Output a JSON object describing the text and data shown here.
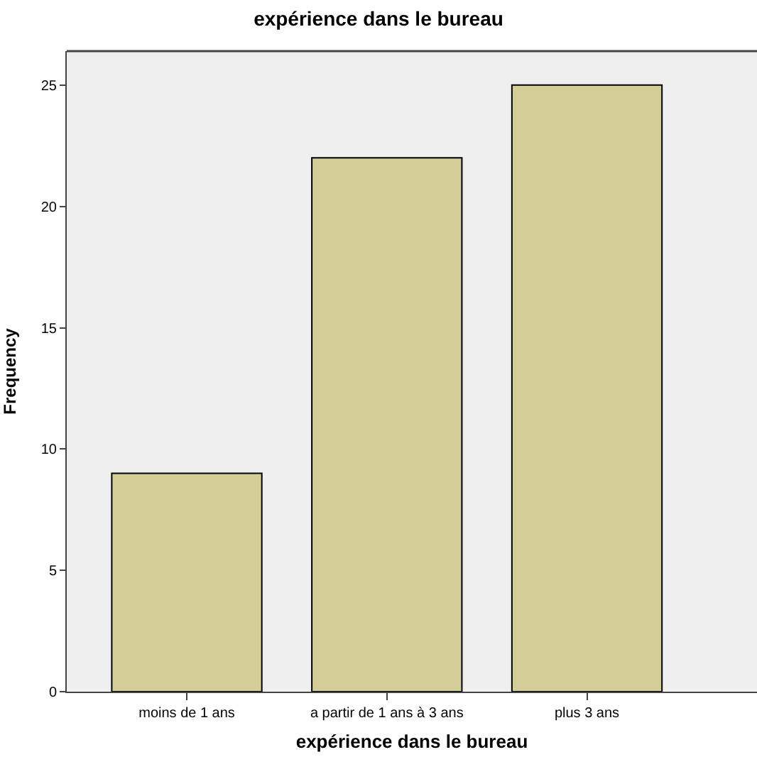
{
  "chart_data": {
    "type": "bar",
    "title": "expérience dans le bureau",
    "xlabel": "expérience dans le bureau",
    "ylabel": "Frequency",
    "categories": [
      "moins de 1 ans",
      "a partir de 1 ans à 3 ans",
      "plus 3 ans"
    ],
    "values": [
      9,
      22,
      25
    ],
    "color": "#d3ce97",
    "ylim": [
      0,
      26.4
    ],
    "yticks": [
      0,
      5,
      10,
      15,
      20,
      25
    ],
    "grid": false
  }
}
